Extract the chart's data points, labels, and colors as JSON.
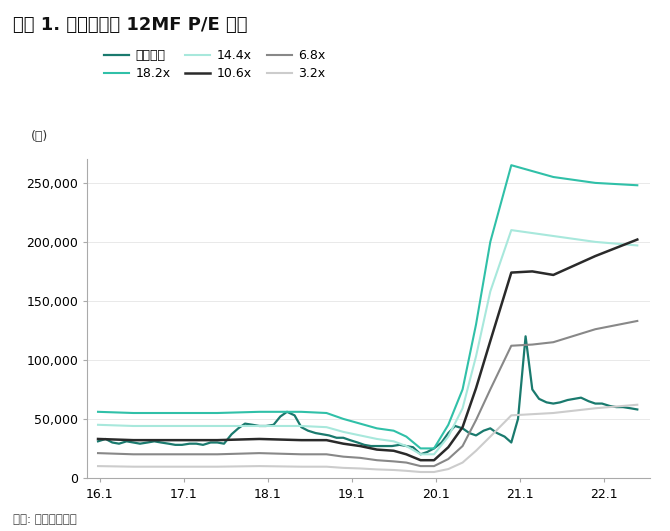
{
  "title": "그림 1. 실리콘웍스 12MF P/E 추이",
  "ylabel": "(원)",
  "source": "자료: 하나금융투자",
  "background_color": "#ffffff",
  "xlim": [
    15.95,
    22.65
  ],
  "ylim": [
    0,
    270000
  ],
  "yticks": [
    0,
    50000,
    100000,
    150000,
    200000,
    250000
  ],
  "xticks": [
    16.1,
    17.1,
    18.1,
    19.1,
    20.1,
    21.1,
    22.1
  ],
  "series": {
    "수정주가": {
      "color": "#1a7a6e",
      "linewidth": 1.6,
      "x": [
        16.08,
        16.17,
        16.25,
        16.33,
        16.42,
        16.5,
        16.58,
        16.67,
        16.75,
        16.83,
        16.92,
        17.0,
        17.08,
        17.17,
        17.25,
        17.33,
        17.42,
        17.5,
        17.58,
        17.67,
        17.75,
        17.83,
        17.92,
        18.0,
        18.08,
        18.17,
        18.25,
        18.33,
        18.42,
        18.5,
        18.58,
        18.67,
        18.75,
        18.83,
        18.92,
        19.0,
        19.08,
        19.17,
        19.25,
        19.33,
        19.42,
        19.5,
        19.58,
        19.67,
        19.75,
        19.83,
        19.92,
        20.0,
        20.08,
        20.17,
        20.25,
        20.33,
        20.42,
        20.5,
        20.58,
        20.67,
        20.75,
        20.83,
        20.92,
        21.0,
        21.08,
        21.17,
        21.25,
        21.33,
        21.42,
        21.5,
        21.58,
        21.67,
        21.75,
        21.83,
        21.92,
        22.0,
        22.08,
        22.17,
        22.25,
        22.33,
        22.42,
        22.5
      ],
      "y": [
        31000,
        33000,
        30000,
        29000,
        31000,
        30000,
        29000,
        30000,
        31000,
        30000,
        29000,
        28000,
        28000,
        29000,
        29000,
        28000,
        30000,
        30000,
        29000,
        37000,
        42000,
        46000,
        45000,
        44000,
        44000,
        45000,
        52000,
        56000,
        53000,
        43000,
        40000,
        38000,
        37000,
        36000,
        34000,
        34000,
        32000,
        30000,
        28000,
        27000,
        27000,
        27000,
        27000,
        28000,
        27000,
        26000,
        20000,
        22000,
        25000,
        30000,
        38000,
        44000,
        42000,
        38000,
        36000,
        40000,
        42000,
        38000,
        35000,
        30000,
        50000,
        120000,
        75000,
        67000,
        64000,
        63000,
        64000,
        66000,
        67000,
        68000,
        65000,
        63000,
        63000,
        61000,
        60000,
        60000,
        59000,
        58000
      ]
    },
    "18.2x": {
      "color": "#30c0a8",
      "linewidth": 1.5,
      "x": [
        16.08,
        16.5,
        17.0,
        17.5,
        18.0,
        18.5,
        18.8,
        19.0,
        19.2,
        19.4,
        19.6,
        19.75,
        19.92,
        20.08,
        20.25,
        20.42,
        20.58,
        20.75,
        21.0,
        21.5,
        22.0,
        22.5
      ],
      "y": [
        56000,
        55000,
        55000,
        55000,
        56000,
        56000,
        55000,
        50000,
        46000,
        42000,
        40000,
        35000,
        25000,
        25000,
        45000,
        75000,
        130000,
        200000,
        265000,
        255000,
        250000,
        248000
      ]
    },
    "14.4x": {
      "color": "#a8e8dc",
      "linewidth": 1.5,
      "x": [
        16.08,
        16.5,
        17.0,
        17.5,
        18.0,
        18.5,
        18.8,
        19.0,
        19.2,
        19.4,
        19.6,
        19.75,
        19.92,
        20.08,
        20.25,
        20.42,
        20.58,
        20.75,
        21.0,
        21.5,
        22.0,
        22.5
      ],
      "y": [
        45000,
        44000,
        44000,
        44000,
        44000,
        44000,
        43000,
        39000,
        36000,
        33000,
        31000,
        27000,
        20000,
        20000,
        35000,
        59000,
        103000,
        158000,
        210000,
        205000,
        200000,
        197000
      ]
    },
    "10.6x": {
      "color": "#2a2a2a",
      "linewidth": 1.8,
      "x": [
        16.08,
        16.5,
        17.0,
        17.5,
        18.0,
        18.5,
        18.8,
        19.0,
        19.2,
        19.4,
        19.6,
        19.75,
        19.92,
        20.08,
        20.25,
        20.42,
        20.58,
        20.75,
        21.0,
        21.25,
        21.5,
        22.0,
        22.5
      ],
      "y": [
        33000,
        32000,
        32000,
        32000,
        33000,
        32000,
        32000,
        29000,
        27000,
        24000,
        23000,
        20000,
        15000,
        15000,
        26000,
        43000,
        76000,
        116000,
        174000,
        175000,
        172000,
        188000,
        202000
      ]
    },
    "6.8x": {
      "color": "#888888",
      "linewidth": 1.5,
      "x": [
        16.08,
        16.5,
        17.0,
        17.5,
        18.0,
        18.5,
        18.8,
        19.0,
        19.2,
        19.4,
        19.6,
        19.75,
        19.92,
        20.08,
        20.25,
        20.42,
        20.58,
        20.75,
        21.0,
        21.25,
        21.5,
        22.0,
        22.5
      ],
      "y": [
        21000,
        20000,
        20000,
        20000,
        21000,
        20000,
        20000,
        18000,
        17000,
        15000,
        14000,
        13000,
        10000,
        10000,
        16000,
        27000,
        49000,
        75000,
        112000,
        113000,
        115000,
        126000,
        133000
      ]
    },
    "3.2x": {
      "color": "#cccccc",
      "linewidth": 1.5,
      "x": [
        16.08,
        16.5,
        17.0,
        17.5,
        18.0,
        18.5,
        18.8,
        19.0,
        19.2,
        19.4,
        19.6,
        19.75,
        19.92,
        20.08,
        20.25,
        20.42,
        20.58,
        20.75,
        21.0,
        21.25,
        21.5,
        22.0,
        22.5
      ],
      "y": [
        10000,
        9500,
        9500,
        9500,
        10000,
        9500,
        9500,
        8500,
        8000,
        7200,
        6700,
        6000,
        5000,
        5000,
        7500,
        13000,
        23000,
        35000,
        53000,
        54000,
        55000,
        59000,
        62000
      ]
    }
  },
  "legend_row1": [
    "수정주가",
    "18.2x",
    "14.4x"
  ],
  "legend_row2": [
    "10.6x",
    "6.8x",
    "3.2x"
  ]
}
